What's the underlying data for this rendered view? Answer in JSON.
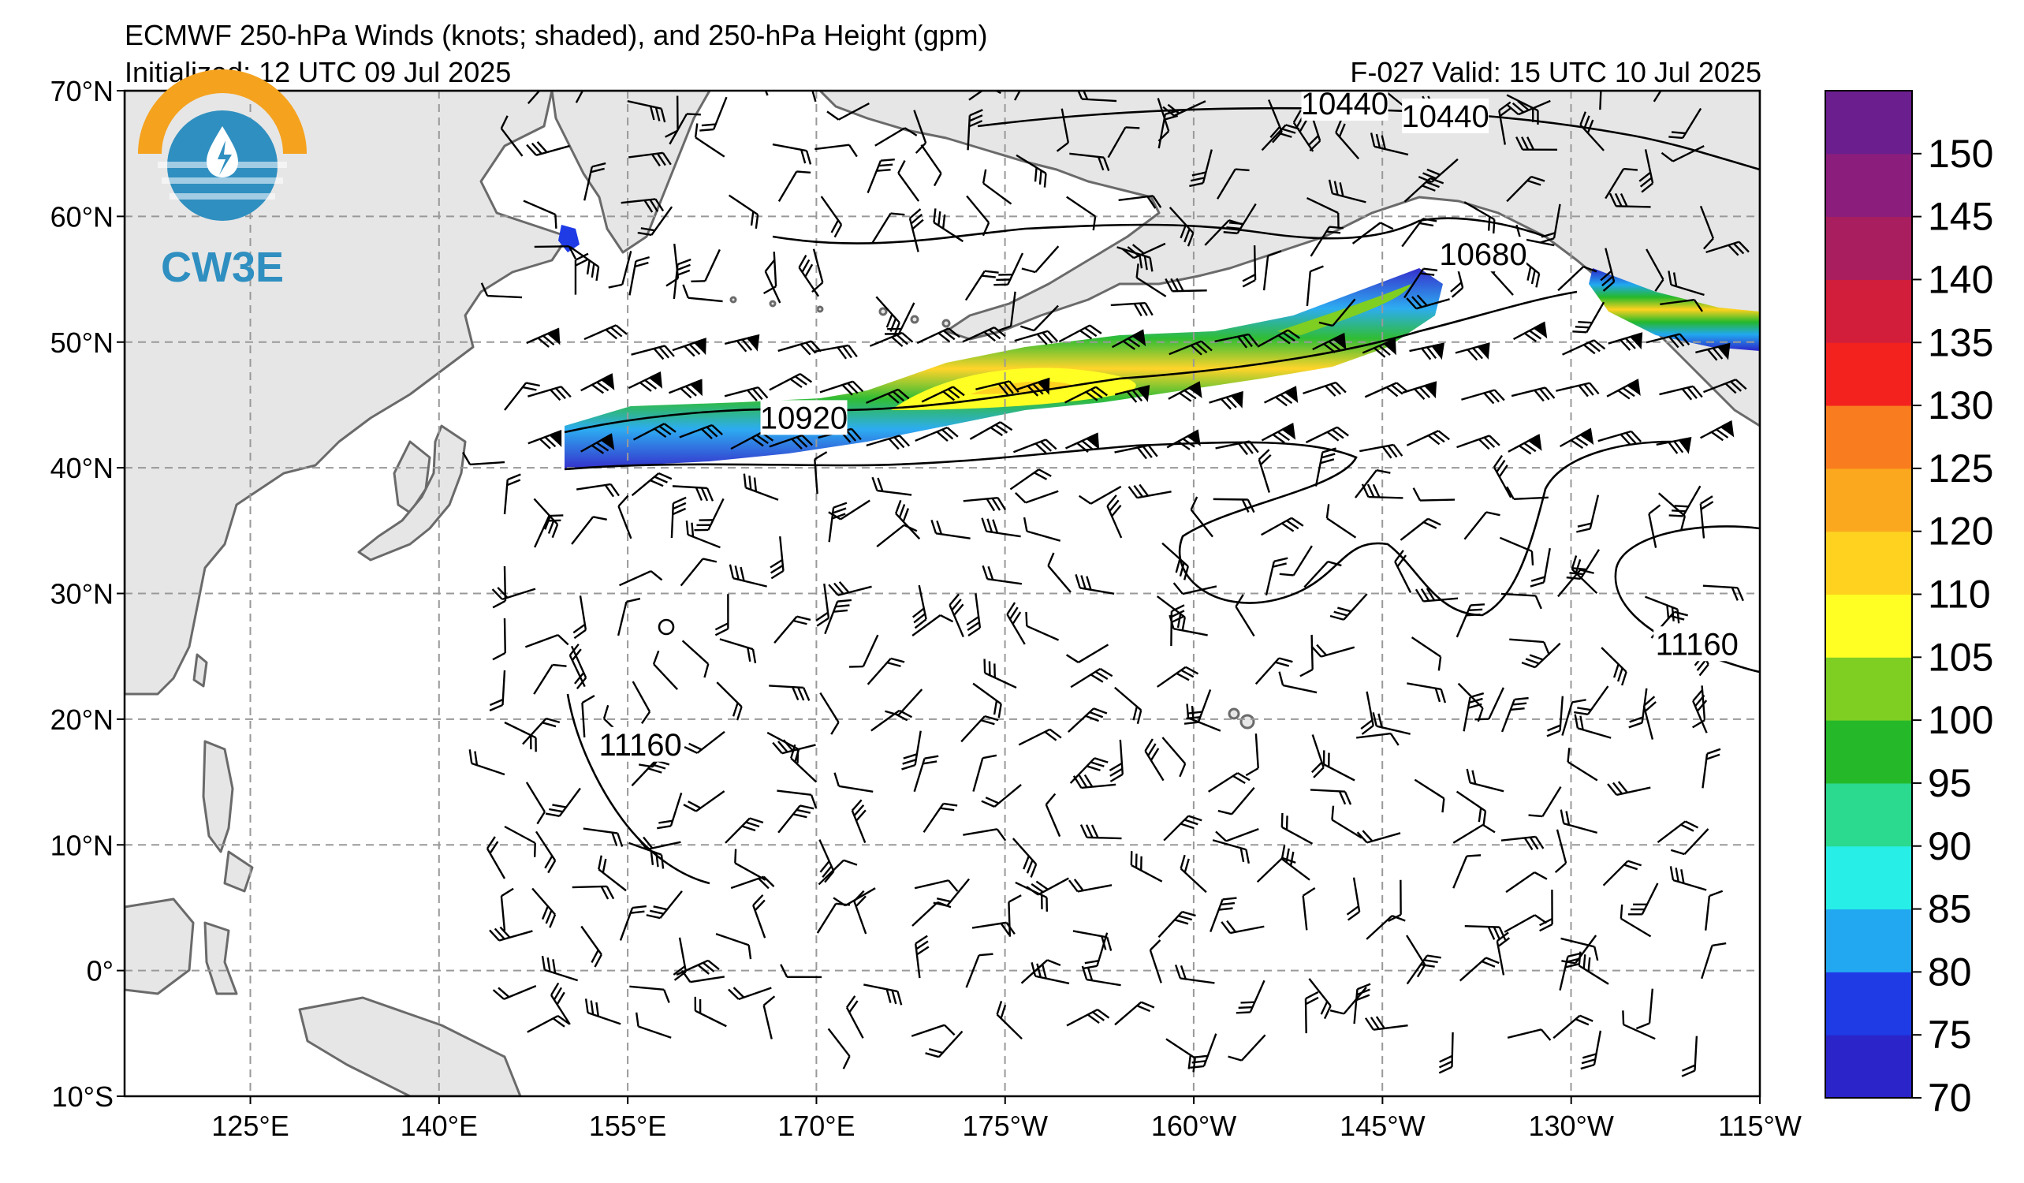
{
  "header": {
    "title": "ECMWF 250-hPa Winds (knots; shaded), and 250-hPa Height (gpm)",
    "initialized": "Initialized: 12 UTC 09 Jul 2025",
    "valid": "F-027  Valid: 15 UTC 10 Jul 2025"
  },
  "logo": {
    "text": "CW3E",
    "brand_color": "#2f8fc0",
    "accent_color": "#f5a21e"
  },
  "map": {
    "projection": "equirectangular",
    "lon_range": [
      115,
      245
    ],
    "lat_range": [
      -10,
      70
    ],
    "lat_labels": [
      "70°N",
      "60°N",
      "50°N",
      "40°N",
      "30°N",
      "20°N",
      "10°N",
      "0°",
      "10°S"
    ],
    "lon_labels": [
      "125°E",
      "140°E",
      "155°E",
      "170°E",
      "175°W",
      "160°W",
      "145°W",
      "130°W",
      "115°W"
    ],
    "grid": true,
    "land_color": "#e6e6e6",
    "coast_color": "#777777"
  },
  "height_contours": {
    "units": "gpm",
    "labels": [
      {
        "text": "10440",
        "lon": 212,
        "lat": 69
      },
      {
        "text": "10440",
        "lon": 220,
        "lat": 68
      },
      {
        "text": "10680",
        "lon": 223,
        "lat": 57
      },
      {
        "text": "10920",
        "lon": 169,
        "lat": 44
      },
      {
        "text": "11160",
        "lon": 156,
        "lat": 18
      },
      {
        "text": "11160",
        "lon": 240,
        "lat": 26
      }
    ]
  },
  "wind_colorbar": {
    "units": "knots",
    "ticks": [
      "70",
      "75",
      "80",
      "85",
      "90",
      "95",
      "100",
      "105",
      "110",
      "120",
      "125",
      "130",
      "135",
      "140",
      "145",
      "150"
    ],
    "colors": [
      "#2b24c9",
      "#1f3be6",
      "#22a8f0",
      "#27eee6",
      "#2bd98f",
      "#25b92a",
      "#7fce22",
      "#ffff24",
      "#ffd21f",
      "#fba81e",
      "#f97c1e",
      "#f3221e",
      "#d21e3a",
      "#a81e5e",
      "#8b1e7c",
      "#6b1e8e"
    ]
  },
  "jet_streaks": [
    {
      "name": "main-jet",
      "max_knots": 120
    },
    {
      "name": "gulf-of-alaska-jet",
      "max_knots": 100
    },
    {
      "name": "kamchatka-jet",
      "max_knots": 80
    }
  ]
}
